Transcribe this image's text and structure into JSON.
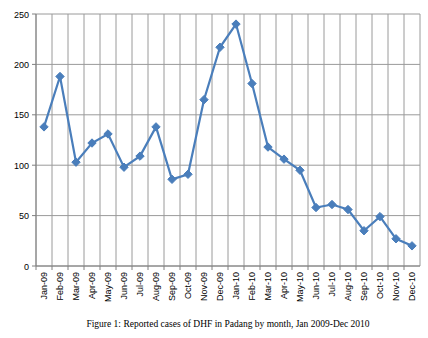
{
  "chart_data": {
    "type": "line",
    "title": "Figure 1: Reported cases of DHF in Padang by month, Jan 2009-Dec 2010",
    "categories": [
      "Jan-09",
      "Feb-09",
      "Mar-09",
      "Apr-09",
      "May-09",
      "Jun-09",
      "Jul-09",
      "Aug-09",
      "Sep-09",
      "Oct-09",
      "Nov-09",
      "Dec-09",
      "Jan-10",
      "Feb-10",
      "Mar-10",
      "Apr-10",
      "May-10",
      "Jun-10",
      "Jul-10",
      "Aug-10",
      "Sep-10",
      "Oct-10",
      "Nov-10",
      "Dec-10"
    ],
    "values": [
      138,
      188,
      103,
      122,
      131,
      98,
      109,
      138,
      86,
      91,
      165,
      217,
      240,
      181,
      118,
      106,
      95,
      58,
      61,
      56,
      35,
      49,
      27,
      20
    ],
    "color": "#4a7ebb",
    "marker": "diamond",
    "line_style": "solid",
    "ylim": [
      0,
      250
    ],
    "yticks": [
      0,
      50,
      100,
      150,
      200,
      250
    ],
    "grid": true
  }
}
